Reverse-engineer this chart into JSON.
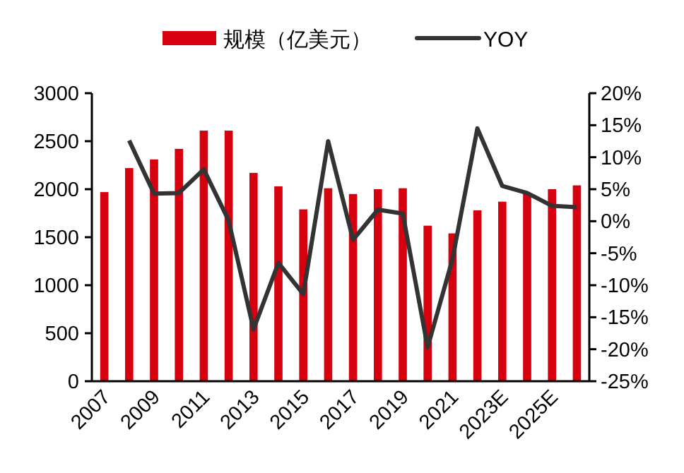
{
  "chart_data": {
    "type": "bar",
    "categories": [
      "2007",
      null,
      "2009",
      null,
      "2011",
      null,
      "2013",
      null,
      "2015",
      null,
      "2017",
      null,
      "2019",
      null,
      "2021",
      null,
      "2023E",
      null,
      "2025E",
      null
    ],
    "series": [
      {
        "name": "规模（亿美元）",
        "color": "#d7000f",
        "values": [
          1970,
          2220,
          2310,
          2420,
          2610,
          2610,
          2170,
          2030,
          1790,
          2010,
          1950,
          2000,
          2010,
          1620,
          1540,
          1780,
          1870,
          1950,
          2000,
          2040
        ]
      },
      {
        "name": "YOY",
        "type": "line",
        "axis": "y2",
        "color": "#333333",
        "values": [
          null,
          12.6,
          4.3,
          4.4,
          8.1,
          0.1,
          -16.9,
          -6.5,
          -11.4,
          12.5,
          -2.9,
          1.8,
          1.2,
          -19.7,
          -5.9,
          14.5,
          5.5,
          4.4,
          2.4,
          2.2
        ]
      }
    ],
    "ylim": [
      0,
      3000
    ],
    "yticks": [
      0,
      500,
      1000,
      1500,
      2000,
      2500,
      3000
    ],
    "y2lim": [
      -25,
      20
    ],
    "y2ticks": [
      {
        "value": -25,
        "label": "-25%"
      },
      {
        "value": -20,
        "label": "-20%"
      },
      {
        "value": -15,
        "label": "-15%"
      },
      {
        "value": -10,
        "label": "-10%"
      },
      {
        "value": -5,
        "label": "-5%"
      },
      {
        "value": 0,
        "label": "0%"
      },
      {
        "value": 5,
        "label": "5%"
      },
      {
        "value": 10,
        "label": "10%"
      },
      {
        "value": 15,
        "label": "15%"
      },
      {
        "value": 20,
        "label": "20%"
      }
    ],
    "legend": "top",
    "grid": false
  }
}
